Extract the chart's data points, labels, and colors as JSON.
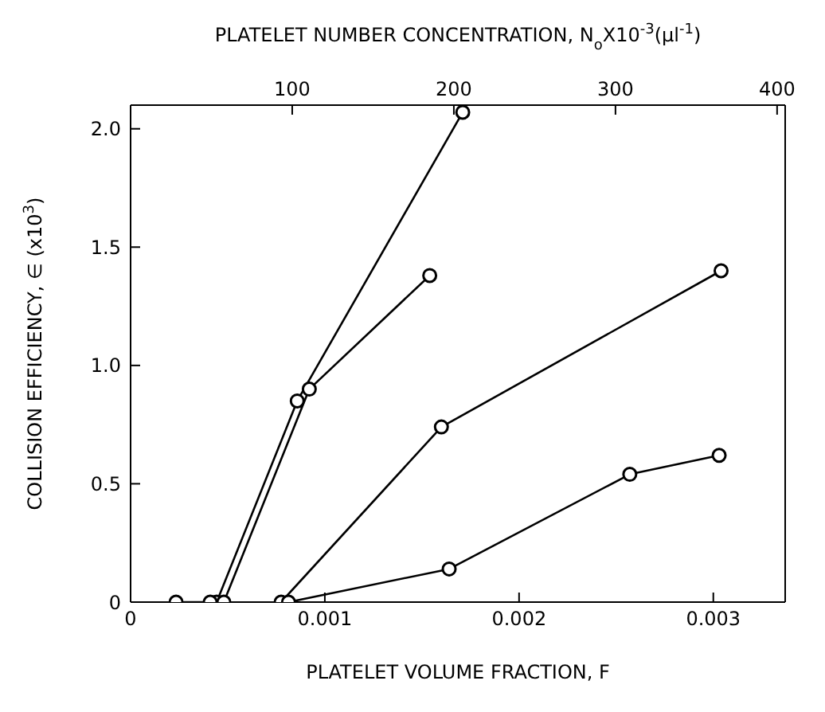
{
  "chart_data": {
    "type": "line",
    "xlabel": "PLATELET VOLUME FRACTION, F",
    "ylabel": "COLLISION EFFICIENCY, ∈ (x10$^{3}$)",
    "x2label": "PLATELET NUMBER CONCENTRATION, N$_{o}$X10$^{-3}$(μl$^{-1}$)",
    "xlim": [
      0,
      0.00337
    ],
    "xticks": [
      0,
      0.001,
      0.002,
      0.003
    ],
    "x2lim": [
      0,
      405
    ],
    "x2ticks": [
      100,
      200,
      300,
      400
    ],
    "ylim": [
      0,
      2.1
    ],
    "yticks": [
      0,
      0.5,
      {
        "value": 1,
        "label": "1.0"
      },
      {
        "value": 1.5,
        "label": "1.5"
      },
      {
        "value": 2,
        "label": "2.0"
      }
    ],
    "marker": "circle",
    "line_style": "solid",
    "series": [
      {
        "color": "#000000",
        "x": [
          0.000234,
          0.000443,
          0.000858,
          0.00171
        ],
        "values": [
          0,
          0,
          0.85,
          2.07
        ]
      },
      {
        "color": "#000000",
        "x": [
          0.00041,
          0.00048,
          0.00092,
          0.00154
        ],
        "values": [
          0,
          0,
          0.9,
          1.38
        ]
      },
      {
        "color": "#000000",
        "x": [
          0.000775,
          0.0016,
          0.00304
        ],
        "values": [
          0,
          0.74,
          1.4
        ]
      },
      {
        "color": "#000000",
        "x": [
          0.000813,
          0.00164,
          0.00257,
          0.00303
        ],
        "values": [
          0,
          0.14,
          0.54,
          0.62
        ]
      }
    ]
  }
}
